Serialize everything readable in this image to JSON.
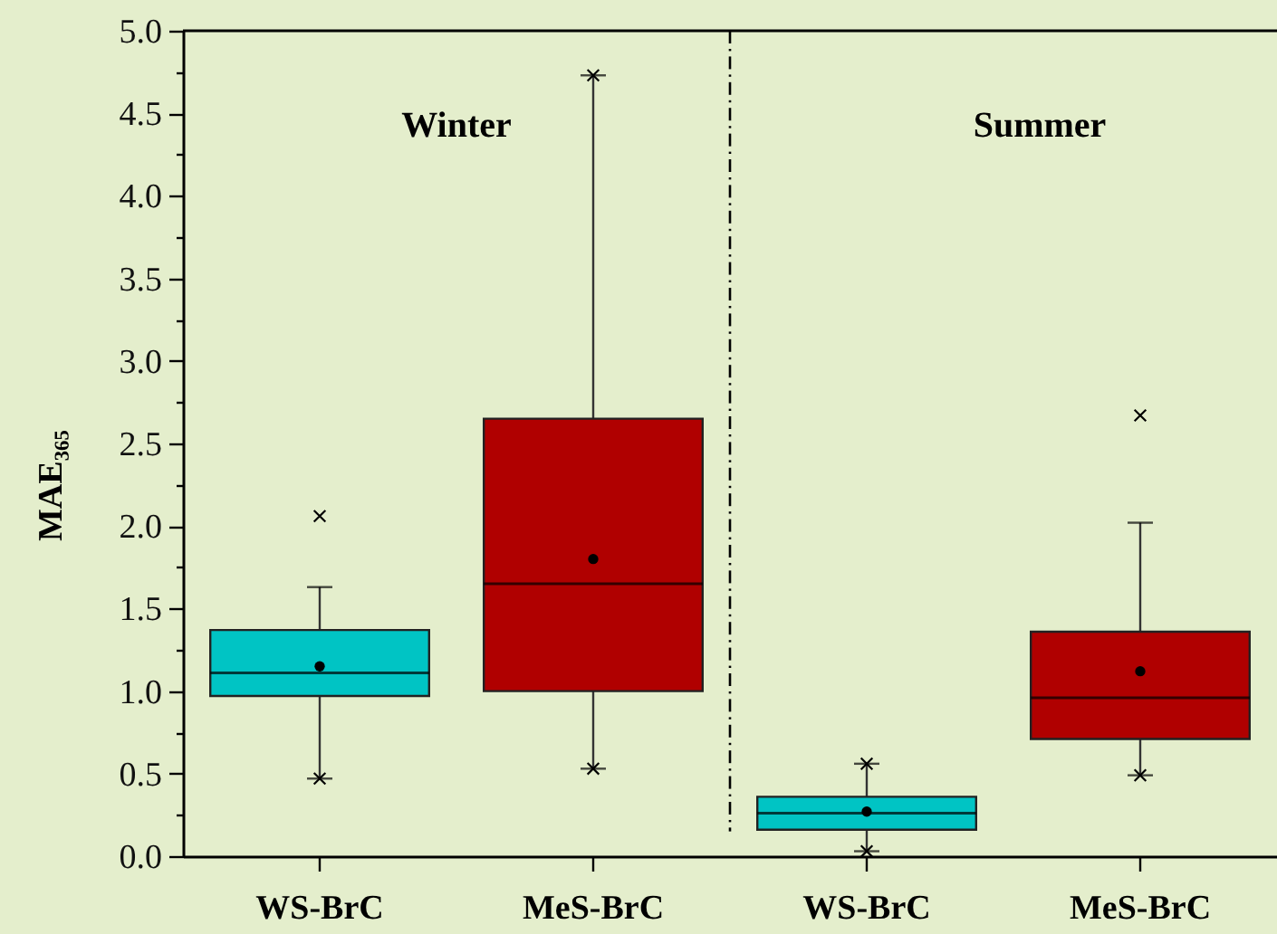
{
  "chart_data": {
    "type": "box",
    "categories": [
      "WS-BrC",
      "MeS-BrC",
      "WS-BrC",
      "MeS-BrC"
    ],
    "boxes": [
      {
        "low": 0.47,
        "q1": 0.97,
        "median": 1.11,
        "q3": 1.37,
        "high": 1.63,
        "mean": 1.15,
        "outliers": [
          0.47,
          2.06
        ]
      },
      {
        "low": 0.53,
        "q1": 1.0,
        "median": 1.65,
        "q3": 2.65,
        "high": 4.73,
        "mean": 1.8,
        "outliers": [
          0.53,
          4.73
        ]
      },
      {
        "low": 0.03,
        "q1": 0.16,
        "median": 0.26,
        "q3": 0.36,
        "high": 0.56,
        "mean": 0.27,
        "outliers": [
          0.03,
          0.56
        ]
      },
      {
        "low": 0.49,
        "q1": 0.71,
        "median": 0.96,
        "q3": 1.36,
        "high": 2.02,
        "mean": 1.12,
        "outliers": [
          0.49,
          2.67
        ]
      }
    ],
    "colors": [
      "#00c4c4",
      "#b00000",
      "#00c4c4",
      "#b00000"
    ],
    "ylabel": "MAE₃₆₅",
    "ylim": [
      0,
      5
    ],
    "yticks": [
      {
        "value": 0,
        "label": "0.0"
      },
      {
        "value": 0.25,
        "label": null
      },
      {
        "value": 0.5,
        "label": "0.5"
      },
      {
        "value": 0.75,
        "label": null
      },
      {
        "value": 1,
        "label": "1.0"
      },
      {
        "value": 1.25,
        "label": null
      },
      {
        "value": 1.5,
        "label": "1.5"
      },
      {
        "value": 1.75,
        "label": null
      },
      {
        "value": 2,
        "label": "2.0"
      },
      {
        "value": 2.25,
        "label": null
      },
      {
        "value": 2.5,
        "label": "2.5"
      },
      {
        "value": 2.75,
        "label": null
      },
      {
        "value": 3,
        "label": "3.0"
      },
      {
        "value": 3.25,
        "label": null
      },
      {
        "value": 3.5,
        "label": "3.5"
      },
      {
        "value": 3.75,
        "label": null
      },
      {
        "value": 4,
        "label": "4.0"
      },
      {
        "value": 4.25,
        "label": null
      },
      {
        "value": 4.5,
        "label": "4.5"
      },
      {
        "value": 4.75,
        "label": null
      },
      {
        "value": 5,
        "label": "5.0"
      }
    ],
    "annotations": [
      "Winter",
      "Summer"
    ]
  }
}
